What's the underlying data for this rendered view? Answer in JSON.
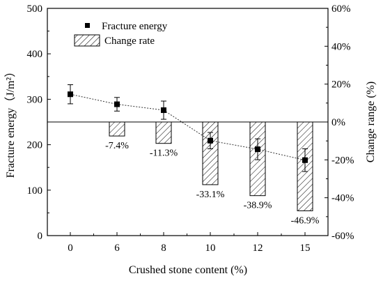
{
  "chart_data": {
    "type": "bar+line",
    "categories": [
      "0",
      "6",
      "8",
      "10",
      "12",
      "15"
    ],
    "xlabel": "Crushed stone content (%)",
    "ylabel_left": "Fracture energy（J/m²）",
    "ylabel_right": "Change range (%)",
    "ylim_left": [
      0,
      500
    ],
    "yticks_left": [
      "0",
      "100",
      "200",
      "300",
      "400",
      "500"
    ],
    "ylim_right": [
      -60,
      60
    ],
    "yticks_right": [
      "-60%",
      "-40%",
      "-20%",
      "0%",
      "20%",
      "40%",
      "60%"
    ],
    "series": [
      {
        "name": "Fracture energy",
        "kind": "line-marker",
        "values": [
          311,
          289,
          276,
          209,
          190,
          166
        ],
        "errors": [
          21,
          15,
          20,
          18,
          23,
          25
        ]
      },
      {
        "name": "Change rate",
        "kind": "bar-hatched",
        "values": [
          0,
          -7.4,
          -11.3,
          -33.1,
          -38.9,
          -46.9
        ],
        "labels": [
          "",
          "-7.4%",
          "-11.3%",
          "-33.1%",
          "-38.9%",
          "-46.9%"
        ]
      }
    ],
    "legend_position": "top-left",
    "grid": false
  }
}
